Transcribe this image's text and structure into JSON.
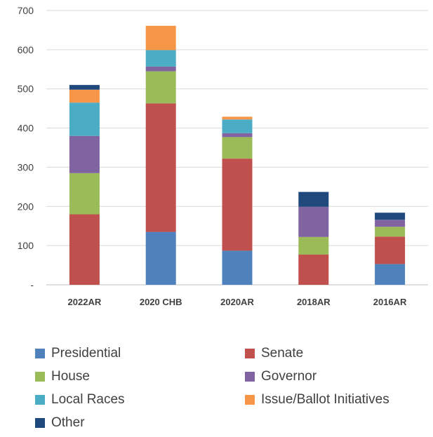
{
  "chart_data": {
    "type": "bar",
    "stacked": true,
    "title": "",
    "xlabel": "",
    "ylabel": "",
    "ylim": [
      0,
      700
    ],
    "yticks": [
      0,
      100,
      200,
      300,
      400,
      500,
      600,
      700
    ],
    "ytick_labels": [
      "-",
      "100",
      "200",
      "300",
      "400",
      "500",
      "600",
      "700"
    ],
    "grid": true,
    "legend_position": "bottom",
    "categories": [
      "2022AR",
      "2020 CHB",
      "2020AR",
      "2018AR",
      "2016AR"
    ],
    "series": [
      {
        "name": "Presidential",
        "color": "#4f81bd",
        "values": [
          0,
          135,
          87,
          0,
          53
        ]
      },
      {
        "name": "Senate",
        "color": "#c0504d",
        "values": [
          180,
          328,
          235,
          77,
          70
        ]
      },
      {
        "name": "House",
        "color": "#9bbb59",
        "values": [
          105,
          82,
          55,
          45,
          25
        ]
      },
      {
        "name": "Governor",
        "color": "#8064a2",
        "values": [
          95,
          12,
          10,
          77,
          18
        ]
      },
      {
        "name": "Local Races",
        "color": "#4bacc6",
        "values": [
          85,
          42,
          35,
          0,
          0
        ]
      },
      {
        "name": "Issue/Ballot Initiatives",
        "color": "#f79646",
        "values": [
          33,
          62,
          7,
          0,
          0
        ]
      },
      {
        "name": "Other",
        "color": "#1f497d",
        "values": [
          12,
          0,
          0,
          38,
          18
        ]
      }
    ]
  }
}
